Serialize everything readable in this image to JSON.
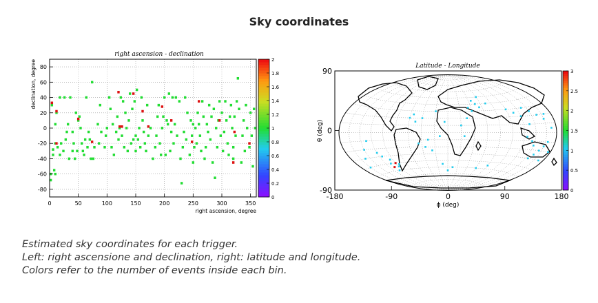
{
  "page_title": "Sky coordinates",
  "caption": [
    "Estimated sky coordinates for each trigger.",
    "Left: right ascensione and declination, right: latitude and longitude.",
    "Colors refer to the number of events inside each bin."
  ],
  "chart_data": [
    {
      "type": "heatmap",
      "title": "right ascension - declination",
      "xlabel": "right ascension, degree",
      "ylabel": "declination, degree",
      "xlim": [
        0,
        360
      ],
      "ylim": [
        -90,
        90
      ],
      "xticks": [
        "0",
        "50",
        "100",
        "150",
        "200",
        "250",
        "300",
        "350"
      ],
      "yticks": [
        "-80",
        "-60",
        "-40",
        "-20",
        "0",
        "20",
        "40",
        "60",
        "80"
      ],
      "grid": true,
      "colorbar": {
        "range": [
          0,
          2
        ],
        "ticks": [
          "0",
          "0.2",
          "0.4",
          "0.6",
          "0.8",
          "1",
          "1.2",
          "1.4",
          "1.6",
          "1.8",
          "2"
        ]
      },
      "colors": {
        "count_1": "#22dd33",
        "count_2": "#dd1111"
      },
      "points": [
        [
          2,
          -68
        ],
        [
          2,
          -60
        ],
        [
          4,
          30
        ],
        [
          6,
          -28
        ],
        [
          6,
          -35
        ],
        [
          8,
          -55
        ],
        [
          10,
          5
        ],
        [
          10,
          -20
        ],
        [
          12,
          20
        ],
        [
          14,
          -25
        ],
        [
          18,
          40
        ],
        [
          20,
          -20
        ],
        [
          24,
          -30
        ],
        [
          26,
          40
        ],
        [
          28,
          -15
        ],
        [
          30,
          -5
        ],
        [
          32,
          5
        ],
        [
          34,
          -40
        ],
        [
          36,
          40
        ],
        [
          40,
          -5
        ],
        [
          42,
          -20
        ],
        [
          44,
          -40
        ],
        [
          46,
          20
        ],
        [
          48,
          -30
        ],
        [
          50,
          10
        ],
        [
          52,
          15
        ],
        [
          54,
          0
        ],
        [
          56,
          -20
        ],
        [
          58,
          -30
        ],
        [
          62,
          -15
        ],
        [
          64,
          40
        ],
        [
          66,
          -25
        ],
        [
          68,
          -5
        ],
        [
          70,
          -15
        ],
        [
          72,
          -40
        ],
        [
          74,
          60
        ],
        [
          76,
          -40
        ],
        [
          78,
          -25
        ],
        [
          84,
          5
        ],
        [
          86,
          -20
        ],
        [
          88,
          30
        ],
        [
          90,
          -5
        ],
        [
          98,
          -10
        ],
        [
          100,
          0
        ],
        [
          104,
          40
        ],
        [
          106,
          25
        ],
        [
          108,
          -25
        ],
        [
          110,
          5
        ],
        [
          112,
          -35
        ],
        [
          116,
          -5
        ],
        [
          118,
          15
        ],
        [
          120,
          -15
        ],
        [
          122,
          0
        ],
        [
          124,
          40
        ],
        [
          126,
          -10
        ],
        [
          128,
          35
        ],
        [
          130,
          -25
        ],
        [
          132,
          20
        ],
        [
          134,
          0
        ],
        [
          136,
          -30
        ],
        [
          138,
          10
        ],
        [
          140,
          45
        ],
        [
          142,
          -20
        ],
        [
          144,
          25
        ],
        [
          146,
          -15
        ],
        [
          148,
          35
        ],
        [
          150,
          -30
        ],
        [
          152,
          50
        ],
        [
          154,
          -15
        ],
        [
          156,
          0
        ],
        [
          158,
          -25
        ],
        [
          160,
          40
        ],
        [
          162,
          10
        ],
        [
          164,
          -5
        ],
        [
          166,
          -20
        ],
        [
          168,
          -30
        ],
        [
          170,
          30
        ],
        [
          172,
          -10
        ],
        [
          176,
          0
        ],
        [
          180,
          -40
        ],
        [
          184,
          -25
        ],
        [
          186,
          -10
        ],
        [
          188,
          15
        ],
        [
          190,
          30
        ],
        [
          192,
          -20
        ],
        [
          194,
          -35
        ],
        [
          196,
          0
        ],
        [
          198,
          15
        ],
        [
          200,
          40
        ],
        [
          202,
          -35
        ],
        [
          204,
          10
        ],
        [
          206,
          5
        ],
        [
          208,
          45
        ],
        [
          210,
          -30
        ],
        [
          212,
          -5
        ],
        [
          214,
          40
        ],
        [
          216,
          -20
        ],
        [
          218,
          5
        ],
        [
          220,
          40
        ],
        [
          222,
          -10
        ],
        [
          226,
          35
        ],
        [
          228,
          -40
        ],
        [
          230,
          -72
        ],
        [
          232,
          -25
        ],
        [
          234,
          -5
        ],
        [
          236,
          40
        ],
        [
          238,
          -15
        ],
        [
          240,
          20
        ],
        [
          244,
          -35
        ],
        [
          246,
          10
        ],
        [
          248,
          -10
        ],
        [
          250,
          5
        ],
        [
          252,
          -25
        ],
        [
          254,
          0
        ],
        [
          256,
          -20
        ],
        [
          258,
          20
        ],
        [
          260,
          5
        ],
        [
          262,
          -10
        ],
        [
          264,
          -30
        ],
        [
          266,
          35
        ],
        [
          268,
          15
        ],
        [
          270,
          -40
        ],
        [
          272,
          -25
        ],
        [
          274,
          5
        ],
        [
          276,
          -5
        ],
        [
          278,
          30
        ],
        [
          280,
          -15
        ],
        [
          282,
          15
        ],
        [
          284,
          -45
        ],
        [
          286,
          25
        ],
        [
          288,
          -65
        ],
        [
          290,
          0
        ],
        [
          292,
          -25
        ],
        [
          294,
          10
        ],
        [
          296,
          35
        ],
        [
          298,
          -10
        ],
        [
          300,
          20
        ],
        [
          302,
          -30
        ],
        [
          304,
          -5
        ],
        [
          306,
          35
        ],
        [
          308,
          10
        ],
        [
          310,
          -20
        ],
        [
          312,
          -35
        ],
        [
          314,
          15
        ],
        [
          316,
          30
        ],
        [
          318,
          0
        ],
        [
          320,
          -25
        ],
        [
          322,
          15
        ],
        [
          324,
          -10
        ],
        [
          326,
          35
        ],
        [
          328,
          65
        ],
        [
          330,
          25
        ],
        [
          334,
          -45
        ],
        [
          336,
          -10
        ],
        [
          338,
          10
        ],
        [
          340,
          -30
        ],
        [
          342,
          30
        ],
        [
          344,
          0
        ],
        [
          348,
          -25
        ],
        [
          350,
          20
        ],
        [
          352,
          -10
        ],
        [
          354,
          -50
        ],
        [
          356,
          25
        ],
        [
          358,
          0
        ],
        [
          10,
          -60
        ],
        [
          40,
          -30
        ],
        [
          60,
          -35
        ],
        [
          150,
          -10
        ],
        [
          250,
          -45
        ],
        [
          320,
          -40
        ],
        [
          18,
          -35
        ],
        [
          96,
          -25
        ]
      ],
      "points_count_2": [
        [
          4,
          33
        ],
        [
          12,
          -20
        ],
        [
          12,
          22
        ],
        [
          50,
          12
        ],
        [
          74,
          -18
        ],
        [
          120,
          47
        ],
        [
          122,
          2
        ],
        [
          126,
          2
        ],
        [
          146,
          45
        ],
        [
          162,
          22
        ],
        [
          172,
          2
        ],
        [
          196,
          28
        ],
        [
          212,
          10
        ],
        [
          248,
          -18
        ],
        [
          260,
          35
        ],
        [
          296,
          10
        ],
        [
          320,
          -45
        ],
        [
          322,
          -5
        ],
        [
          348,
          -20
        ]
      ]
    },
    {
      "type": "scatter",
      "title": "Latitude - Longitude",
      "xlabel": "ϕ (deg)",
      "ylabel": "θ (deg)",
      "projection": "aitoff",
      "xlim": [
        -180,
        180
      ],
      "ylim": [
        -90,
        90
      ],
      "xticks": [
        "-180",
        "-90",
        "0",
        "90",
        "180"
      ],
      "yticks": [
        "-90",
        "0",
        "90"
      ],
      "grid": true,
      "colorbar": {
        "range": [
          0,
          3
        ],
        "ticks": [
          "0",
          "0.5",
          "1",
          "1.5",
          "2",
          "2.5",
          "3"
        ]
      },
      "colors": {
        "count_1": "#22ccee",
        "count_2": "#dd1111"
      },
      "points": [
        [
          -110,
          -40
        ],
        [
          -105,
          -35
        ],
        [
          -100,
          -45
        ],
        [
          -115,
          -30
        ],
        [
          -108,
          -50
        ],
        [
          -120,
          -25
        ],
        [
          -95,
          -42
        ],
        [
          -60,
          20
        ],
        [
          -55,
          25
        ],
        [
          -50,
          15
        ],
        [
          -45,
          -15
        ],
        [
          -35,
          -20
        ],
        [
          -30,
          -10
        ],
        [
          -25,
          -25
        ],
        [
          -40,
          20
        ],
        [
          -20,
          30
        ],
        [
          20,
          10
        ],
        [
          25,
          -5
        ],
        [
          30,
          20
        ],
        [
          35,
          35
        ],
        [
          40,
          30
        ],
        [
          45,
          45
        ],
        [
          50,
          40
        ],
        [
          55,
          35
        ],
        [
          60,
          50
        ],
        [
          70,
          40
        ],
        [
          80,
          -45
        ],
        [
          60,
          -50
        ],
        [
          100,
          30
        ],
        [
          110,
          25
        ],
        [
          120,
          20
        ],
        [
          130,
          30
        ],
        [
          140,
          25
        ],
        [
          150,
          20
        ],
        [
          160,
          15
        ],
        [
          165,
          20
        ],
        [
          140,
          -15
        ],
        [
          145,
          -30
        ],
        [
          150,
          -25
        ],
        [
          155,
          -20
        ],
        [
          160,
          -15
        ],
        [
          165,
          -10
        ],
        [
          135,
          -10
        ],
        [
          125,
          -5
        ],
        [
          130,
          10
        ],
        [
          170,
          5
        ],
        [
          -150,
          -30
        ],
        [
          -140,
          -20
        ],
        [
          -130,
          -10
        ],
        [
          -160,
          -40
        ],
        [
          -10,
          -45
        ],
        [
          0,
          -55
        ],
        [
          10,
          -50
        ],
        [
          -5,
          15
        ],
        [
          -12,
          -5
        ],
        [
          170,
          -30
        ],
        [
          175,
          -20
        ]
      ],
      "points_count_2": [
        [
          -110,
          -45
        ],
        [
          -100,
          -40
        ]
      ]
    }
  ]
}
